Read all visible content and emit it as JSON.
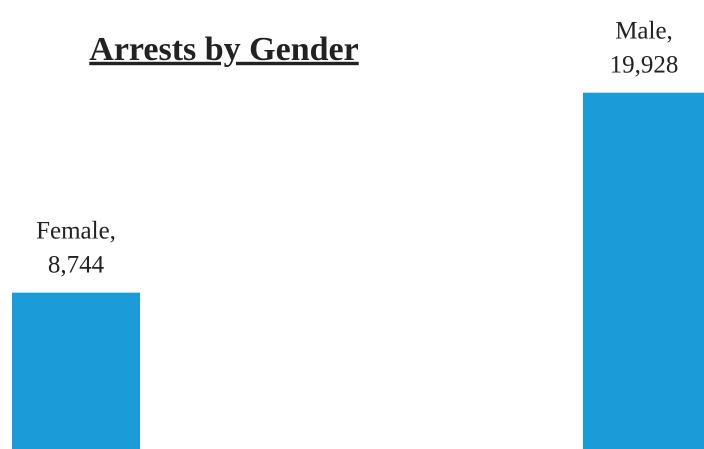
{
  "chart_data": {
    "type": "bar",
    "title": "Arrests by Gender",
    "categories": [
      "Female,",
      "Male,"
    ],
    "values": [
      8744,
      19928
    ],
    "value_labels": [
      "8,744",
      "19,928"
    ],
    "color": "#1b9bd7",
    "ylim": [
      0,
      25000
    ]
  }
}
